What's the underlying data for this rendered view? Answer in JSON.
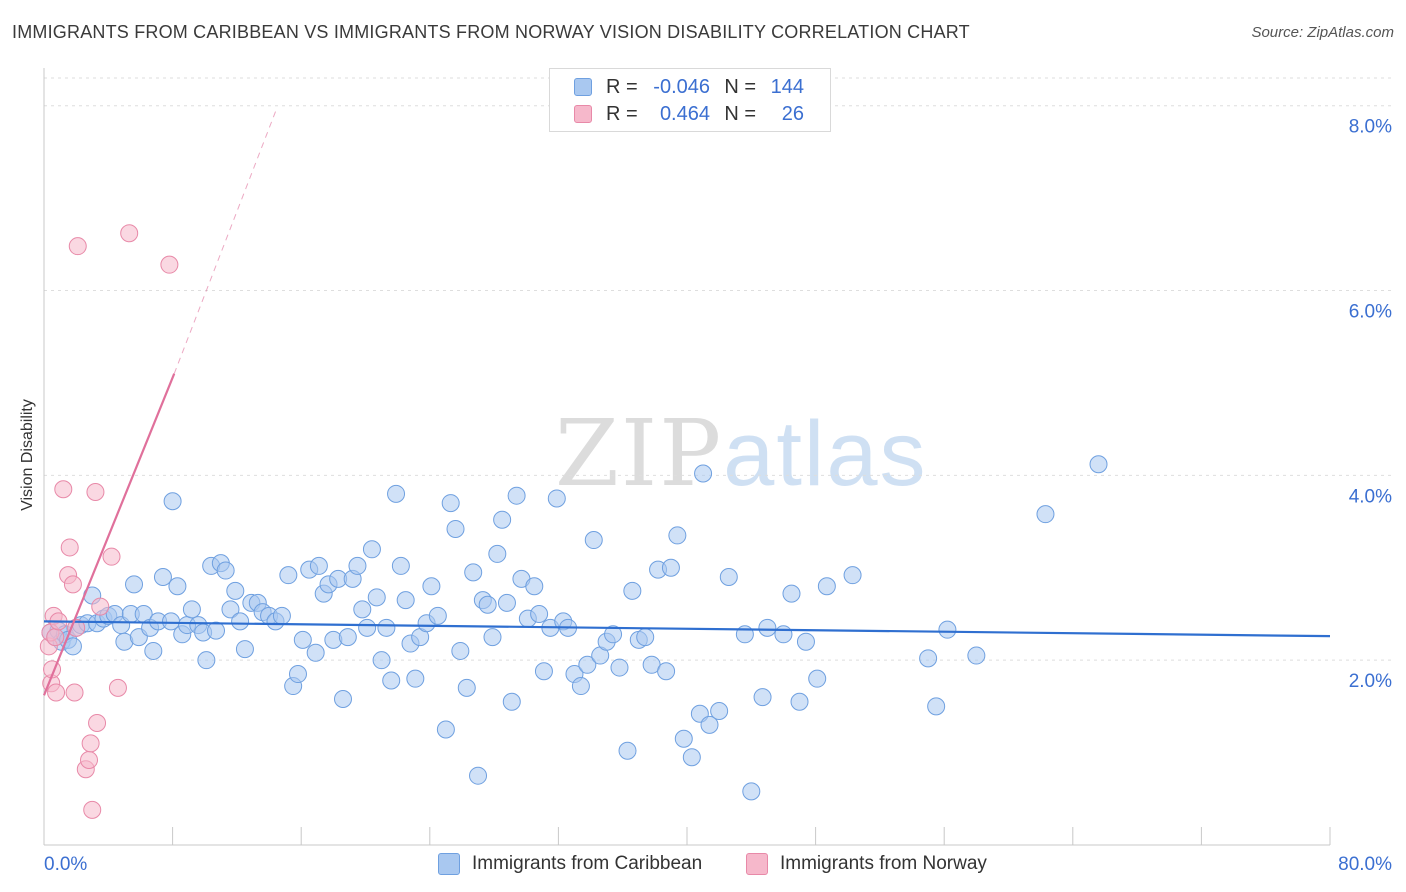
{
  "header": {
    "title": "IMMIGRANTS FROM CARIBBEAN VS IMMIGRANTS FROM NORWAY VISION DISABILITY CORRELATION CHART",
    "source": "Source: ZipAtlas.com"
  },
  "watermark": {
    "zip": "ZIP",
    "atlas": "atlas"
  },
  "legend": {
    "rows": [
      {
        "r_label": "R =",
        "r_value": "-0.046",
        "n_label": "N =",
        "n_value": "144",
        "color": "#a9c8f0"
      },
      {
        "r_label": "R =",
        "r_value": "0.464",
        "n_label": "N =",
        "n_value": "26",
        "color": "#f6b8cb"
      }
    ]
  },
  "colors": {
    "blue_fill": "#a9c8f0",
    "blue_stroke": "#6fa0e0",
    "blue_line": "#2f6fd0",
    "pink_fill": "#f6b8cb",
    "pink_stroke": "#e889a8",
    "pink_line": "#e0709b",
    "tick_label": "#3b6fd1",
    "grid": "#dedede"
  },
  "chart_data": {
    "type": "scatter",
    "title": "IMMIGRANTS FROM CARIBBEAN VS IMMIGRANTS FROM NORWAY VISION DISABILITY CORRELATION CHART",
    "xlabel": "",
    "ylabel": "Vision Disability",
    "xlim": [
      0,
      80
    ],
    "ylim": [
      0,
      8.3
    ],
    "x_tick_labels": [
      "0.0%",
      "80.0%"
    ],
    "y_ticks": [
      2,
      4,
      6,
      8
    ],
    "y_tick_labels": [
      "2.0%",
      "4.0%",
      "6.0%",
      "8.0%"
    ],
    "grid": true,
    "legend_position": "bottom-center",
    "series": [
      {
        "name": "Immigrants from Caribbean",
        "color": "#a9c8f0",
        "trend": {
          "x": [
            0,
            80
          ],
          "y": [
            2.42,
            2.26
          ]
        },
        "points": [
          [
            0.4,
            2.3
          ],
          [
            0.7,
            2.25
          ],
          [
            0.9,
            2.32
          ],
          [
            1.1,
            2.2
          ],
          [
            1.3,
            2.28
          ],
          [
            1.5,
            2.22
          ],
          [
            1.8,
            2.15
          ],
          [
            2.0,
            2.35
          ],
          [
            2.3,
            2.38
          ],
          [
            2.7,
            2.4
          ],
          [
            3.0,
            2.7
          ],
          [
            3.3,
            2.4
          ],
          [
            3.7,
            2.45
          ],
          [
            4.0,
            2.48
          ],
          [
            4.4,
            2.5
          ],
          [
            4.8,
            2.38
          ],
          [
            5.0,
            2.2
          ],
          [
            5.4,
            2.5
          ],
          [
            5.6,
            2.82
          ],
          [
            5.9,
            2.25
          ],
          [
            6.2,
            2.5
          ],
          [
            6.6,
            2.35
          ],
          [
            6.8,
            2.1
          ],
          [
            7.1,
            2.42
          ],
          [
            7.4,
            2.9
          ],
          [
            7.9,
            2.42
          ],
          [
            8.0,
            3.72
          ],
          [
            8.3,
            2.8
          ],
          [
            8.6,
            2.28
          ],
          [
            8.9,
            2.38
          ],
          [
            9.2,
            2.55
          ],
          [
            9.6,
            2.38
          ],
          [
            9.9,
            2.3
          ],
          [
            10.1,
            2.0
          ],
          [
            10.4,
            3.02
          ],
          [
            10.7,
            2.32
          ],
          [
            11.0,
            3.05
          ],
          [
            11.3,
            2.97
          ],
          [
            11.6,
            2.55
          ],
          [
            11.9,
            2.75
          ],
          [
            12.2,
            2.42
          ],
          [
            12.5,
            2.12
          ],
          [
            12.9,
            2.62
          ],
          [
            13.3,
            2.62
          ],
          [
            13.6,
            2.52
          ],
          [
            14.0,
            2.48
          ],
          [
            14.4,
            2.42
          ],
          [
            14.8,
            2.48
          ],
          [
            15.2,
            2.92
          ],
          [
            15.5,
            1.72
          ],
          [
            15.8,
            1.85
          ],
          [
            16.1,
            2.22
          ],
          [
            16.5,
            2.98
          ],
          [
            16.9,
            2.08
          ],
          [
            17.1,
            3.02
          ],
          [
            17.4,
            2.72
          ],
          [
            17.7,
            2.82
          ],
          [
            18.0,
            2.22
          ],
          [
            18.3,
            2.88
          ],
          [
            18.6,
            1.58
          ],
          [
            18.9,
            2.25
          ],
          [
            19.2,
            2.88
          ],
          [
            19.5,
            3.02
          ],
          [
            19.8,
            2.55
          ],
          [
            20.1,
            2.35
          ],
          [
            20.4,
            3.2
          ],
          [
            20.7,
            2.68
          ],
          [
            21.0,
            2.0
          ],
          [
            21.3,
            2.35
          ],
          [
            21.6,
            1.78
          ],
          [
            21.9,
            3.8
          ],
          [
            22.2,
            3.02
          ],
          [
            22.5,
            2.65
          ],
          [
            22.8,
            2.18
          ],
          [
            23.1,
            1.8
          ],
          [
            23.4,
            2.25
          ],
          [
            23.8,
            2.4
          ],
          [
            24.1,
            2.8
          ],
          [
            24.5,
            2.48
          ],
          [
            25.0,
            1.25
          ],
          [
            25.3,
            3.7
          ],
          [
            25.6,
            3.42
          ],
          [
            25.9,
            2.1
          ],
          [
            26.3,
            1.7
          ],
          [
            26.7,
            2.95
          ],
          [
            27.0,
            0.75
          ],
          [
            27.3,
            2.65
          ],
          [
            27.6,
            2.6
          ],
          [
            27.9,
            2.25
          ],
          [
            28.2,
            3.15
          ],
          [
            28.5,
            3.52
          ],
          [
            28.8,
            2.62
          ],
          [
            29.1,
            1.55
          ],
          [
            29.4,
            3.78
          ],
          [
            29.7,
            2.88
          ],
          [
            30.1,
            2.45
          ],
          [
            30.5,
            2.8
          ],
          [
            30.8,
            2.5
          ],
          [
            31.1,
            1.88
          ],
          [
            31.5,
            2.35
          ],
          [
            31.9,
            3.75
          ],
          [
            32.3,
            2.42
          ],
          [
            32.6,
            2.35
          ],
          [
            33.0,
            1.85
          ],
          [
            33.4,
            1.72
          ],
          [
            33.8,
            1.95
          ],
          [
            34.2,
            3.3
          ],
          [
            34.6,
            2.05
          ],
          [
            35.0,
            2.2
          ],
          [
            35.4,
            2.28
          ],
          [
            35.8,
            1.92
          ],
          [
            36.3,
            1.02
          ],
          [
            36.6,
            2.75
          ],
          [
            37.0,
            2.22
          ],
          [
            37.4,
            2.25
          ],
          [
            37.8,
            1.95
          ],
          [
            38.2,
            2.98
          ],
          [
            38.7,
            1.88
          ],
          [
            39.0,
            3.0
          ],
          [
            39.4,
            3.35
          ],
          [
            39.8,
            1.15
          ],
          [
            40.3,
            0.95
          ],
          [
            40.8,
            1.42
          ],
          [
            41.0,
            4.02
          ],
          [
            41.4,
            1.3
          ],
          [
            42.0,
            1.45
          ],
          [
            42.6,
            2.9
          ],
          [
            43.6,
            2.28
          ],
          [
            44.0,
            0.58
          ],
          [
            44.7,
            1.6
          ],
          [
            45.0,
            2.35
          ],
          [
            46.0,
            2.28
          ],
          [
            46.5,
            2.72
          ],
          [
            47.0,
            1.55
          ],
          [
            47.4,
            2.2
          ],
          [
            48.1,
            1.8
          ],
          [
            48.7,
            2.8
          ],
          [
            50.3,
            2.92
          ],
          [
            55.0,
            2.02
          ],
          [
            55.5,
            1.5
          ],
          [
            56.2,
            2.33
          ],
          [
            58.0,
            2.05
          ],
          [
            62.3,
            3.58
          ],
          [
            65.6,
            4.12
          ]
        ]
      },
      {
        "name": "Immigrants from Norway",
        "color": "#f6b8cb",
        "trend": {
          "x": [
            0,
            8.1
          ],
          "y": [
            1.62,
            5.1
          ],
          "dash_x": [
            8.1,
            14.5
          ],
          "dash_y": [
            5.1,
            7.98
          ]
        },
        "points": [
          [
            0.3,
            2.15
          ],
          [
            0.4,
            2.3
          ],
          [
            0.45,
            1.75
          ],
          [
            0.5,
            1.9
          ],
          [
            0.6,
            2.48
          ],
          [
            0.7,
            2.25
          ],
          [
            0.75,
            1.65
          ],
          [
            0.9,
            2.42
          ],
          [
            1.2,
            3.85
          ],
          [
            1.5,
            2.92
          ],
          [
            1.6,
            3.22
          ],
          [
            1.8,
            2.82
          ],
          [
            1.9,
            1.65
          ],
          [
            2.0,
            2.35
          ],
          [
            2.1,
            6.48
          ],
          [
            2.6,
            0.82
          ],
          [
            2.8,
            0.92
          ],
          [
            2.9,
            1.1
          ],
          [
            3.0,
            0.38
          ],
          [
            3.2,
            3.82
          ],
          [
            3.3,
            1.32
          ],
          [
            3.5,
            2.58
          ],
          [
            4.2,
            3.12
          ],
          [
            4.6,
            1.7
          ],
          [
            5.3,
            6.62
          ],
          [
            7.8,
            6.28
          ]
        ]
      }
    ]
  },
  "bottom_legend": {
    "items": [
      {
        "label": "Immigrants from Caribbean"
      },
      {
        "label": "Immigrants from Norway"
      }
    ]
  }
}
